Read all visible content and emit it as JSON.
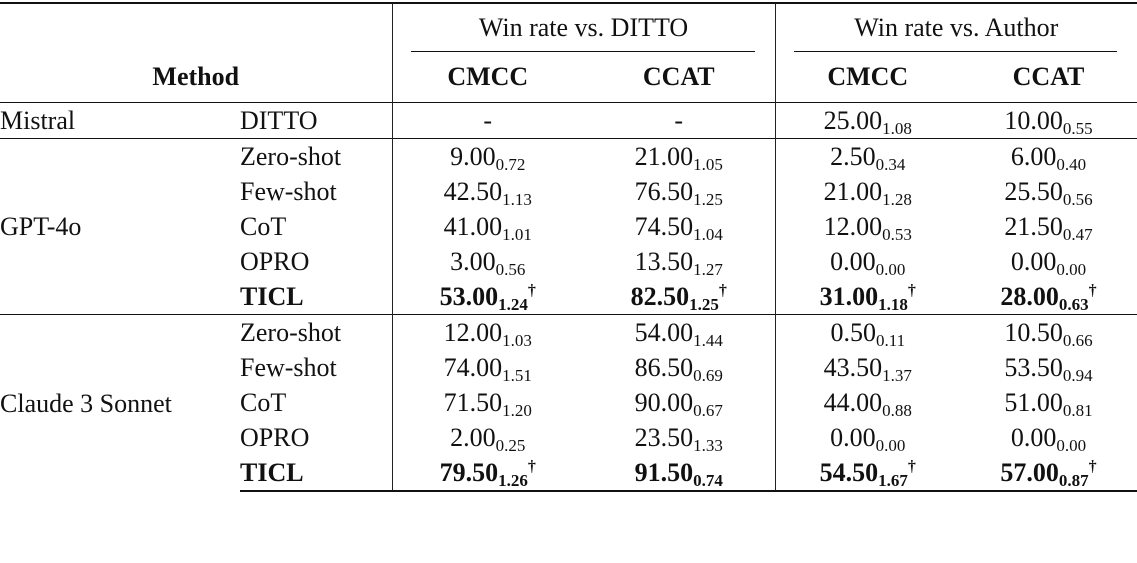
{
  "header": {
    "method": "Method",
    "groups": [
      "Win rate vs. DITTO",
      "Win rate vs. Author"
    ],
    "columns": [
      "CMCC",
      "CCAT",
      "CMCC",
      "CCAT"
    ]
  },
  "groups": [
    {
      "model": "Mistral",
      "rows": [
        {
          "method": "DITTO",
          "bold": false,
          "cells": [
            {
              "v": "-",
              "s": "",
              "dag": ""
            },
            {
              "v": "-",
              "s": "",
              "dag": ""
            },
            {
              "v": "25.00",
              "s": "1.08",
              "dag": ""
            },
            {
              "v": "10.00",
              "s": "0.55",
              "dag": ""
            }
          ]
        }
      ]
    },
    {
      "model": "GPT-4o",
      "rows": [
        {
          "method": "Zero-shot",
          "bold": false,
          "cells": [
            {
              "v": "9.00",
              "s": "0.72",
              "dag": ""
            },
            {
              "v": "21.00",
              "s": "1.05",
              "dag": ""
            },
            {
              "v": "2.50",
              "s": "0.34",
              "dag": ""
            },
            {
              "v": "6.00",
              "s": "0.40",
              "dag": ""
            }
          ]
        },
        {
          "method": "Few-shot",
          "bold": false,
          "cells": [
            {
              "v": "42.50",
              "s": "1.13",
              "dag": ""
            },
            {
              "v": "76.50",
              "s": "1.25",
              "dag": ""
            },
            {
              "v": "21.00",
              "s": "1.28",
              "dag": ""
            },
            {
              "v": "25.50",
              "s": "0.56",
              "dag": ""
            }
          ]
        },
        {
          "method": "CoT",
          "bold": false,
          "cells": [
            {
              "v": "41.00",
              "s": "1.01",
              "dag": ""
            },
            {
              "v": "74.50",
              "s": "1.04",
              "dag": ""
            },
            {
              "v": "12.00",
              "s": "0.53",
              "dag": ""
            },
            {
              "v": "21.50",
              "s": "0.47",
              "dag": ""
            }
          ]
        },
        {
          "method": "OPRO",
          "bold": false,
          "cells": [
            {
              "v": "3.00",
              "s": "0.56",
              "dag": ""
            },
            {
              "v": "13.50",
              "s": "1.27",
              "dag": ""
            },
            {
              "v": "0.00",
              "s": "0.00",
              "dag": ""
            },
            {
              "v": "0.00",
              "s": "0.00",
              "dag": ""
            }
          ]
        },
        {
          "method": "TICL",
          "bold": true,
          "cells": [
            {
              "v": "53.00",
              "s": "1.24",
              "dag": "†"
            },
            {
              "v": "82.50",
              "s": "1.25",
              "dag": "†"
            },
            {
              "v": "31.00",
              "s": "1.18",
              "dag": "†"
            },
            {
              "v": "28.00",
              "s": "0.63",
              "dag": "†"
            }
          ]
        }
      ]
    },
    {
      "model": "Claude 3 Sonnet",
      "rows": [
        {
          "method": "Zero-shot",
          "bold": false,
          "cells": [
            {
              "v": "12.00",
              "s": "1.03",
              "dag": ""
            },
            {
              "v": "54.00",
              "s": "1.44",
              "dag": ""
            },
            {
              "v": "0.50",
              "s": "0.11",
              "dag": ""
            },
            {
              "v": "10.50",
              "s": "0.66",
              "dag": ""
            }
          ]
        },
        {
          "method": "Few-shot",
          "bold": false,
          "cells": [
            {
              "v": "74.00",
              "s": "1.51",
              "dag": ""
            },
            {
              "v": "86.50",
              "s": "0.69",
              "dag": ""
            },
            {
              "v": "43.50",
              "s": "1.37",
              "dag": ""
            },
            {
              "v": "53.50",
              "s": "0.94",
              "dag": ""
            }
          ]
        },
        {
          "method": "CoT",
          "bold": false,
          "cells": [
            {
              "v": "71.50",
              "s": "1.20",
              "dag": ""
            },
            {
              "v": "90.00",
              "s": "0.67",
              "dag": ""
            },
            {
              "v": "44.00",
              "s": "0.88",
              "dag": ""
            },
            {
              "v": "51.00",
              "s": "0.81",
              "dag": ""
            }
          ]
        },
        {
          "method": "OPRO",
          "bold": false,
          "cells": [
            {
              "v": "2.00",
              "s": "0.25",
              "dag": ""
            },
            {
              "v": "23.50",
              "s": "1.33",
              "dag": ""
            },
            {
              "v": "0.00",
              "s": "0.00",
              "dag": ""
            },
            {
              "v": "0.00",
              "s": "0.00",
              "dag": ""
            }
          ]
        },
        {
          "method": "TICL",
          "bold": true,
          "cells": [
            {
              "v": "79.50",
              "s": "1.26",
              "dag": "†"
            },
            {
              "v": "91.50",
              "s": "0.74",
              "dag": ""
            },
            {
              "v": "54.50",
              "s": "1.67",
              "dag": "†"
            },
            {
              "v": "57.00",
              "s": "0.87",
              "dag": "†"
            }
          ]
        }
      ]
    }
  ]
}
